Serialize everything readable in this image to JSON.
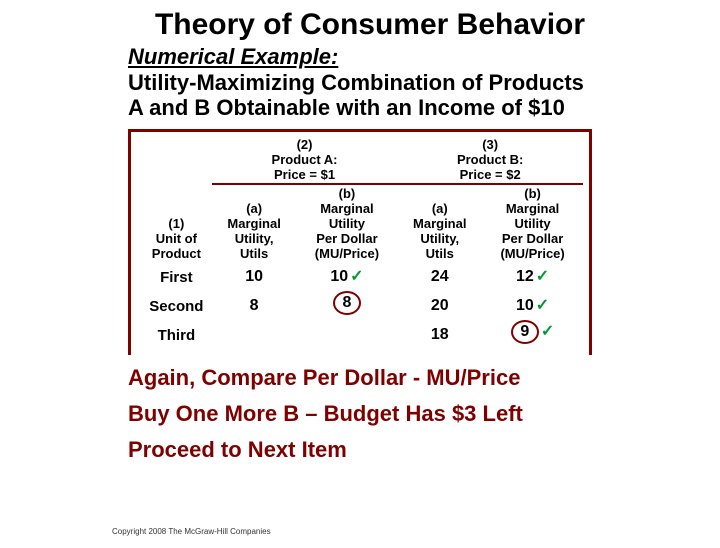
{
  "title": "Theory of Consumer Behavior",
  "subtitle": "Numerical Example:",
  "desc1": "Utility-Maximizing Combination of Products",
  "desc2": "A and B Obtainable with an Income of $10",
  "table": {
    "col1_hdr_a": "(1)",
    "col1_hdr_b": "Unit of",
    "col1_hdr_c": "Product",
    "grp2_a": "(2)",
    "grp2_b": "Product A:",
    "grp2_c": "Price = $1",
    "grp3_a": "(3)",
    "grp3_b": "Product B:",
    "grp3_c": "Price = $2",
    "sub_a_a": "(a)",
    "sub_a_b": "Marginal",
    "sub_a_c": "Utility,",
    "sub_a_d": "Utils",
    "sub_b_a": "(b)",
    "sub_b_b": "Marginal",
    "sub_b_c": "Utility",
    "sub_b_d": "Per Dollar",
    "sub_b_e": "(MU/Price)",
    "rows": [
      {
        "label": "First",
        "a_mu": "10",
        "a_mup": "10",
        "a_check": true,
        "b_mu": "24",
        "b_mup": "12",
        "b_check": true,
        "a_circ": false,
        "b_circ": false
      },
      {
        "label": "Second",
        "a_mu": "8",
        "a_mup": "8",
        "a_check": false,
        "b_mu": "20",
        "b_mup": "10",
        "b_check": true,
        "a_circ": true,
        "b_circ": false
      },
      {
        "label": "Third",
        "a_mu": "",
        "a_mup": "",
        "a_check": false,
        "b_mu": "18",
        "b_mup": "9",
        "b_check": true,
        "a_circ": false,
        "b_circ": true
      }
    ]
  },
  "conclusion1": "Again, Compare Per Dollar - MU/Price",
  "conclusion2": "Buy One More B  – Budget Has $3 Left",
  "conclusion3": "Proceed to Next Item",
  "copyright": "Copyright 2008 The McGraw-Hill Companies",
  "colors": {
    "maroon": "#800000",
    "green": "#009933"
  }
}
